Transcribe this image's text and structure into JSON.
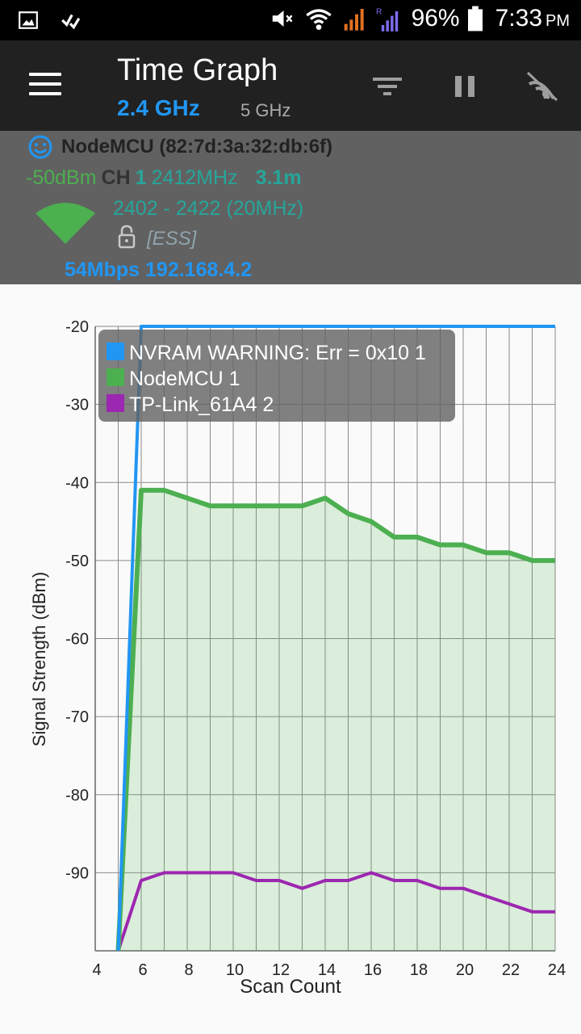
{
  "status_bar": {
    "battery": "96%",
    "time": "7:33",
    "ampm": "PM",
    "signal_label": "R"
  },
  "toolbar": {
    "title": "Time Graph",
    "tab_24": "2.4 GHz",
    "tab_5": "5 GHz"
  },
  "access_point": {
    "name": "NodeMCU (82:7d:3a:32:db:6f)",
    "level": "-50dBm",
    "channel_label": "CH",
    "channel": "1",
    "frequency": "2412MHz",
    "distance": "3.1m",
    "range": "2402 - 2422 (20MHz)",
    "security": "[ESS]",
    "rate_ip": "54Mbps 192.168.4.2"
  },
  "colors": {
    "accent": "#2196f3",
    "series_1": "#2196f3",
    "series_2": "#4caf50",
    "series_3": "#9c27b0"
  },
  "chart_data": {
    "type": "line",
    "xlabel": "Scan Count",
    "ylabel": "Signal Strength (dBm)",
    "xlim": [
      4,
      24
    ],
    "ylim": [
      -100,
      -20
    ],
    "x_ticks": [
      4,
      6,
      8,
      10,
      12,
      14,
      16,
      18,
      20,
      22,
      24
    ],
    "y_ticks": [
      -20,
      -30,
      -40,
      -50,
      -60,
      -70,
      -80,
      -90
    ],
    "grid": true,
    "legend_position": "top-left",
    "series": [
      {
        "name": "NVRAM WARNING: Err = 0x10 1",
        "color": "#2196f3",
        "x": [
          5,
          6,
          7,
          8,
          9,
          10,
          11,
          12,
          13,
          14,
          15,
          16,
          17,
          18,
          19,
          20,
          21,
          22,
          23,
          24
        ],
        "y": [
          -100,
          -20,
          -20,
          -20,
          -20,
          -20,
          -20,
          -20,
          -20,
          -20,
          -20,
          -20,
          -20,
          -20,
          -20,
          -20,
          -20,
          -20,
          -20,
          -20
        ],
        "fill": false
      },
      {
        "name": "NodeMCU 1",
        "color": "#4caf50",
        "x": [
          5,
          6,
          7,
          8,
          9,
          10,
          11,
          12,
          13,
          14,
          15,
          16,
          17,
          18,
          19,
          20,
          21,
          22,
          23,
          24
        ],
        "y": [
          -100,
          -41,
          -41,
          -42,
          -43,
          -43,
          -43,
          -43,
          -43,
          -42,
          -44,
          -45,
          -47,
          -47,
          -48,
          -48,
          -49,
          -49,
          -50,
          -50
        ],
        "fill": true
      },
      {
        "name": "TP-Link_61A4 2",
        "color": "#9c27b0",
        "x": [
          5,
          6,
          7,
          8,
          9,
          10,
          11,
          12,
          13,
          14,
          15,
          16,
          17,
          18,
          19,
          20,
          21,
          22,
          23,
          24
        ],
        "y": [
          -100,
          -91,
          -90,
          -90,
          -90,
          -90,
          -91,
          -91,
          -92,
          -91,
          -91,
          -90,
          -91,
          -91,
          -92,
          -92,
          -93,
          -94,
          -95,
          -95
        ],
        "fill": false
      }
    ]
  }
}
